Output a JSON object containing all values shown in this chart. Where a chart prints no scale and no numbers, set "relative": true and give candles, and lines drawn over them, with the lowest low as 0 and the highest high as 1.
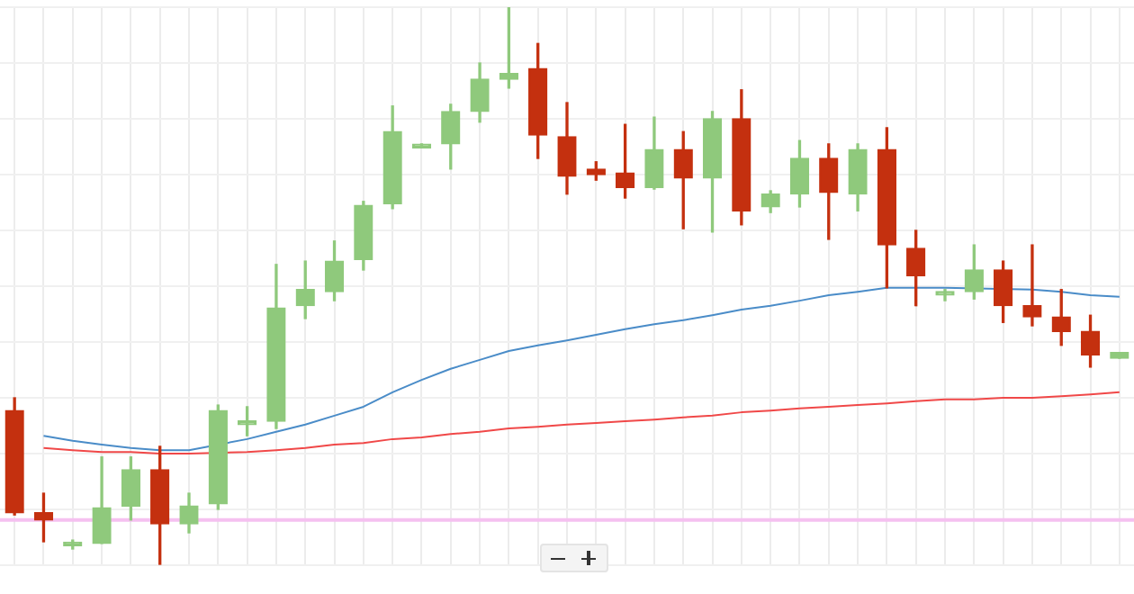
{
  "chart_data": {
    "type": "candlestick",
    "relative": true,
    "grid": true,
    "legend": false,
    "categories": [
      null,
      null,
      null,
      null,
      null,
      null,
      null,
      null,
      null,
      null,
      null,
      null,
      null,
      null,
      null,
      null,
      null,
      null,
      null,
      null,
      null,
      null,
      null,
      null,
      null,
      null,
      null,
      null,
      null,
      null,
      null,
      null,
      null,
      null,
      null,
      null,
      null,
      null,
      null
    ],
    "series": [
      {
        "type": "line",
        "color": "#4a8cc8",
        "values": [
          null,
          0.232,
          0.223,
          0.216,
          0.21,
          0.206,
          0.206,
          null,
          0.226,
          0.239,
          0.252,
          0.268,
          0.284,
          0.31,
          0.332,
          0.352,
          0.368,
          0.384,
          0.394,
          0.403,
          0.413,
          0.423,
          0.432,
          0.439,
          0.448,
          0.458,
          0.465,
          0.474,
          0.484,
          0.49,
          0.497,
          0.497,
          0.497,
          null,
          null,
          0.494,
          0.49,
          0.484,
          0.481
        ]
      },
      {
        "type": "line",
        "color": "#f04848",
        "values": [
          null,
          0.21,
          0.206,
          0.203,
          0.203,
          0.2,
          0.2,
          null,
          0.203,
          0.206,
          0.21,
          0.216,
          0.219,
          0.226,
          0.229,
          0.235,
          0.239,
          0.245,
          0.248,
          0.252,
          0.255,
          0.258,
          0.261,
          0.265,
          0.268,
          0.274,
          0.277,
          0.281,
          0.284,
          0.287,
          0.29,
          0.294,
          0.297,
          0.297,
          0.3,
          0.3,
          0.303,
          0.306,
          0.31
        ]
      },
      {
        "type": "candlestick",
        "colors": [
          "#c4300f",
          "#c4300f",
          "#8fc97c",
          "#8fc97c",
          "#8fc97c",
          "#c4300f",
          "#8fc97c",
          "#8fc97c",
          "#8fc97c",
          "#8fc97c",
          "#8fc97c",
          "#8fc97c",
          "#8fc97c",
          "#8fc97c",
          "#8fc97c",
          "#8fc97c",
          "#8fc97c",
          "#8fc97c",
          "#c4300f",
          "#c4300f",
          "#c4300f",
          "#c4300f",
          "#8fc97c",
          "#c4300f",
          "#8fc97c",
          "#c4300f",
          "#8fc97c",
          "#8fc97c",
          "#c4300f",
          "#8fc97c",
          "#c4300f",
          "#c4300f",
          "#8fc97c",
          "#8fc97c",
          "#c4300f",
          "#c4300f",
          "#c4300f",
          "#c4300f",
          "#8fc97c"
        ],
        "ohlc": [
          [
            0.277,
            0.3,
            0.09,
            0.094
          ],
          [
            0.094,
            0.129,
            0.042,
            0.081
          ],
          [
            0.035,
            0.045,
            0.029,
            0.035
          ],
          [
            0.039,
            0.194,
            0.039,
            0.103
          ],
          [
            0.106,
            0.194,
            0.081,
            0.171
          ],
          [
            0.171,
            0.213,
            0,
            0.074
          ],
          [
            0.074,
            0.129,
            0.058,
            0.106
          ],
          [
            0.11,
            0.287,
            0.1,
            0.277
          ],
          [
            0.252,
            0.284,
            0.232,
            0.255
          ],
          [
            0.258,
            0.539,
            0.245,
            0.461
          ],
          [
            0.465,
            0.545,
            0.442,
            0.494
          ],
          [
            0.49,
            0.581,
            0.474,
            0.545
          ],
          [
            0.548,
            0.652,
            0.529,
            0.645
          ],
          [
            0.648,
            0.823,
            0.639,
            0.777
          ],
          [
            0.748,
            0.755,
            0.748,
            0.752
          ],
          [
            0.755,
            0.826,
            0.71,
            0.813
          ],
          [
            0.813,
            0.9,
            0.794,
            0.871
          ],
          [
            0.871,
            1,
            0.855,
            0.881
          ],
          [
            0.89,
            0.935,
            0.729,
            0.771
          ],
          [
            0.768,
            0.829,
            0.665,
            0.697
          ],
          [
            0.71,
            0.723,
            0.69,
            0.7
          ],
          [
            0.703,
            0.79,
            0.658,
            0.677
          ],
          [
            0.677,
            0.803,
            0.674,
            0.745
          ],
          [
            0.745,
            0.777,
            0.603,
            0.694
          ],
          [
            0.694,
            0.813,
            0.597,
            0.8
          ],
          [
            0.8,
            0.852,
            0.61,
            0.635
          ],
          [
            0.642,
            0.671,
            0.632,
            0.665
          ],
          [
            0.665,
            0.761,
            0.642,
            0.729
          ],
          [
            0.729,
            0.755,
            0.584,
            0.668
          ],
          [
            0.665,
            0.755,
            0.635,
            0.745
          ],
          [
            0.745,
            0.784,
            0.497,
            0.574
          ],
          [
            0.568,
            0.6,
            0.465,
            0.519
          ],
          [
            0.484,
            0.494,
            0.474,
            0.49
          ],
          [
            0.49,
            0.574,
            0.477,
            0.529
          ],
          [
            0.529,
            0.545,
            0.435,
            0.465
          ],
          [
            0.465,
            0.574,
            0.429,
            0.445
          ],
          [
            0.445,
            0.494,
            0.394,
            0.419
          ],
          [
            0.419,
            0.448,
            0.355,
            0.377
          ],
          [
            0.371,
            0.381,
            0.371,
            0.381
          ]
        ]
      }
    ],
    "ref_lines": [
      {
        "axis": "y",
        "value": 0.081,
        "color": "#f5c0f0"
      }
    ]
  }
}
